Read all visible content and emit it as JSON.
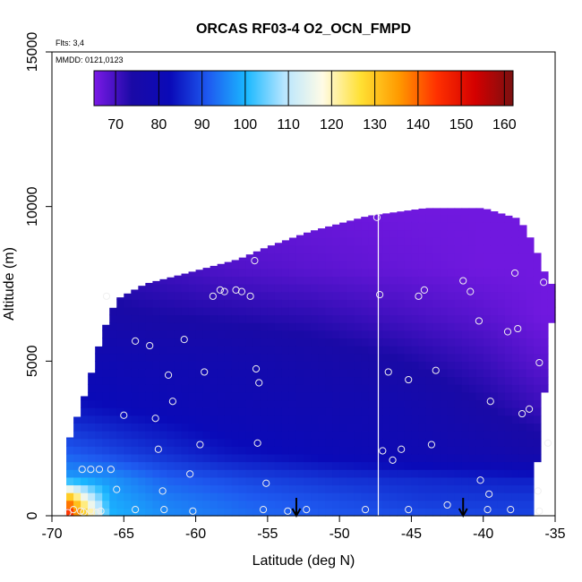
{
  "chart_data": {
    "type": "heatmap",
    "title": "ORCAS RF03-4 O2_OCN_FMPD",
    "flights_note": "Flts: 3,4",
    "date_note": "MMDD: 0121,0123",
    "xlabel": "Latitude (deg N)",
    "ylabel": "Altitude (m)",
    "xlim": [
      -70,
      -35
    ],
    "ylim": [
      0,
      15000
    ],
    "x_ticks": [
      -70,
      -65,
      -60,
      -55,
      -50,
      -45,
      -40,
      -35
    ],
    "x_tick_labels": [
      "-70",
      "-65",
      "-60",
      "-55",
      "-50",
      "-45",
      "-40",
      "-35"
    ],
    "y_ticks": [
      0,
      5000,
      10000,
      15000
    ],
    "y_tick_labels": [
      "0",
      "5000",
      "10000",
      "15000"
    ],
    "colorbar": {
      "range": [
        65,
        162
      ],
      "ticks": [
        70,
        80,
        90,
        100,
        110,
        120,
        130,
        140,
        150,
        160
      ],
      "tick_labels": [
        "70",
        "80",
        "90",
        "100",
        "110",
        "120",
        "130",
        "140",
        "150",
        "160"
      ],
      "colors": [
        "#7b1ae6",
        "#1a0aa6",
        "#0a0ab8",
        "#1e5af0",
        "#1ab8ff",
        "#b8e6ff",
        "#fffbe6",
        "#ffe033",
        "#ff9a00",
        "#ff3000",
        "#d40000",
        "#7a1010"
      ]
    },
    "envelope_top": [
      {
        "lat": -69,
        "alt": 2200
      },
      {
        "lat": -67.5,
        "alt": 4200
      },
      {
        "lat": -66.5,
        "alt": 5900
      },
      {
        "lat": -65.5,
        "alt": 7000
      },
      {
        "lat": -63.5,
        "alt": 7500
      },
      {
        "lat": -61,
        "alt": 7800
      },
      {
        "lat": -57,
        "alt": 8300
      },
      {
        "lat": -55,
        "alt": 8700
      },
      {
        "lat": -52,
        "alt": 9200
      },
      {
        "lat": -48,
        "alt": 9700
      },
      {
        "lat": -44,
        "alt": 9950
      },
      {
        "lat": -40,
        "alt": 9950
      },
      {
        "lat": -37.5,
        "alt": 9600
      },
      {
        "lat": -36.5,
        "alt": 8800
      },
      {
        "lat": -35.5,
        "alt": 7600
      },
      {
        "lat": -35,
        "alt": 7400
      }
    ],
    "envelope_bottom_right": [
      {
        "lat": -35,
        "alt": 7400
      },
      {
        "lat": -35.5,
        "alt": 5100
      },
      {
        "lat": -36,
        "alt": 2800
      },
      {
        "lat": -36.4,
        "alt": 1300
      },
      {
        "lat": -36.6,
        "alt": 0
      }
    ],
    "field_layers": [
      {
        "alt": 0,
        "values": [
          {
            "lat": -69,
            "v": 150
          },
          {
            "lat": -67.5,
            "v": 128
          },
          {
            "lat": -66,
            "v": 100
          },
          {
            "lat": -62,
            "v": 96
          },
          {
            "lat": -56,
            "v": 93
          },
          {
            "lat": -50,
            "v": 91
          },
          {
            "lat": -44,
            "v": 90
          },
          {
            "lat": -38,
            "v": 89
          }
        ]
      },
      {
        "alt": 500,
        "values": [
          {
            "lat": -69,
            "v": 140
          },
          {
            "lat": -67.5,
            "v": 116
          },
          {
            "lat": -66,
            "v": 99
          },
          {
            "lat": -62,
            "v": 95
          },
          {
            "lat": -56,
            "v": 92
          },
          {
            "lat": -50,
            "v": 90
          },
          {
            "lat": -44,
            "v": 88
          },
          {
            "lat": -38,
            "v": 88
          }
        ]
      },
      {
        "alt": 1200,
        "values": [
          {
            "lat": -69,
            "v": 98
          },
          {
            "lat": -66,
            "v": 97
          },
          {
            "lat": -62,
            "v": 92
          },
          {
            "lat": -56,
            "v": 89
          },
          {
            "lat": -50,
            "v": 87
          },
          {
            "lat": -44,
            "v": 86
          },
          {
            "lat": -38,
            "v": 85
          }
        ]
      },
      {
        "alt": 2000,
        "values": [
          {
            "lat": -69,
            "v": 92
          },
          {
            "lat": -64,
            "v": 88
          },
          {
            "lat": -58,
            "v": 84
          },
          {
            "lat": -52,
            "v": 82
          },
          {
            "lat": -46,
            "v": 80
          },
          {
            "lat": -40,
            "v": 78
          },
          {
            "lat": -36,
            "v": 76
          }
        ]
      },
      {
        "alt": 3500,
        "values": [
          {
            "lat": -69,
            "v": 84
          },
          {
            "lat": -64,
            "v": 82
          },
          {
            "lat": -58,
            "v": 80
          },
          {
            "lat": -52,
            "v": 79
          },
          {
            "lat": -46,
            "v": 78
          },
          {
            "lat": -40,
            "v": 74
          },
          {
            "lat": -36,
            "v": 71
          }
        ]
      },
      {
        "alt": 5000,
        "values": [
          {
            "lat": -69,
            "v": 80
          },
          {
            "lat": -64,
            "v": 79
          },
          {
            "lat": -58,
            "v": 78
          },
          {
            "lat": -52,
            "v": 76
          },
          {
            "lat": -46,
            "v": 74
          },
          {
            "lat": -40,
            "v": 71
          },
          {
            "lat": -36,
            "v": 68
          }
        ]
      },
      {
        "alt": 6500,
        "values": [
          {
            "lat": -69,
            "v": 76
          },
          {
            "lat": -64,
            "v": 74
          },
          {
            "lat": -58,
            "v": 73
          },
          {
            "lat": -52,
            "v": 72
          },
          {
            "lat": -46,
            "v": 70
          },
          {
            "lat": -40,
            "v": 68
          },
          {
            "lat": -36,
            "v": 66
          }
        ]
      },
      {
        "alt": 8000,
        "values": [
          {
            "lat": -69,
            "v": 72
          },
          {
            "lat": -64,
            "v": 71
          },
          {
            "lat": -58,
            "v": 69
          },
          {
            "lat": -52,
            "v": 68
          },
          {
            "lat": -46,
            "v": 67
          },
          {
            "lat": -40,
            "v": 66
          },
          {
            "lat": -36,
            "v": 66
          }
        ]
      },
      {
        "alt": 10000,
        "values": [
          {
            "lat": -69,
            "v": 69
          },
          {
            "lat": -58,
            "v": 67
          },
          {
            "lat": -46,
            "v": 66
          },
          {
            "lat": -36,
            "v": 66
          }
        ]
      }
    ],
    "observation_points": [
      [
        -68.9,
        100
      ],
      [
        -68.5,
        200
      ],
      [
        -68,
        150
      ],
      [
        -67.8,
        120
      ],
      [
        -67.3,
        160
      ],
      [
        -66.9,
        100
      ],
      [
        -66.6,
        150
      ],
      [
        -67.9,
        1500
      ],
      [
        -67.3,
        1500
      ],
      [
        -66.7,
        1500
      ],
      [
        -65.9,
        1500
      ],
      [
        -65.5,
        850
      ],
      [
        -64.2,
        200
      ],
      [
        -62.2,
        200
      ],
      [
        -62.3,
        800
      ],
      [
        -60.2,
        150
      ],
      [
        -60.4,
        1350
      ],
      [
        -62.6,
        2150
      ],
      [
        -59.7,
        2300
      ],
      [
        -55.3,
        200
      ],
      [
        -55.1,
        1050
      ],
      [
        -55.7,
        2350
      ],
      [
        -65,
        3250
      ],
      [
        -62.8,
        3150
      ],
      [
        -61.6,
        3700
      ],
      [
        -64.2,
        5650
      ],
      [
        -63.2,
        5500
      ],
      [
        -61.9,
        4550
      ],
      [
        -60.8,
        5700
      ],
      [
        -59.4,
        4650
      ],
      [
        -55.8,
        4750
      ],
      [
        -55.6,
        4300
      ],
      [
        -66.2,
        7100
      ],
      [
        -58.8,
        7100
      ],
      [
        -58.3,
        7300
      ],
      [
        -58,
        7250
      ],
      [
        -57.2,
        7300
      ],
      [
        -56.8,
        7250
      ],
      [
        -56.2,
        7100
      ],
      [
        -55.9,
        8250
      ],
      [
        -47.4,
        9650
      ],
      [
        -47.2,
        7150
      ],
      [
        -46.6,
        4650
      ],
      [
        -47,
        2100
      ],
      [
        -46.3,
        1800
      ],
      [
        -45.2,
        4400
      ],
      [
        -44.5,
        7100
      ],
      [
        -44.1,
        7300
      ],
      [
        -43.3,
        4700
      ],
      [
        -41.4,
        7600
      ],
      [
        -40.9,
        7250
      ],
      [
        -40.3,
        6300
      ],
      [
        -39.5,
        3700
      ],
      [
        -38.3,
        5950
      ],
      [
        -37.8,
        7850
      ],
      [
        -37.6,
        6050
      ],
      [
        -37.3,
        3300
      ],
      [
        -36.8,
        3450
      ],
      [
        -36.1,
        4950
      ],
      [
        -35.8,
        7550
      ],
      [
        -35.5,
        2350
      ],
      [
        -45.7,
        2150
      ],
      [
        -43.6,
        2300
      ],
      [
        -40.2,
        1150
      ],
      [
        -39.6,
        700
      ],
      [
        -38.1,
        200
      ],
      [
        -36.2,
        800
      ],
      [
        -36.1,
        150
      ],
      [
        -42.5,
        350
      ],
      [
        -45.2,
        200
      ],
      [
        -48.2,
        200
      ],
      [
        -52.3,
        200
      ],
      [
        -53.6,
        150
      ],
      [
        -39.7,
        200
      ]
    ],
    "vertical_line_lat": -47.3,
    "arrow_markers_lat": [
      -53,
      -41.4
    ]
  }
}
